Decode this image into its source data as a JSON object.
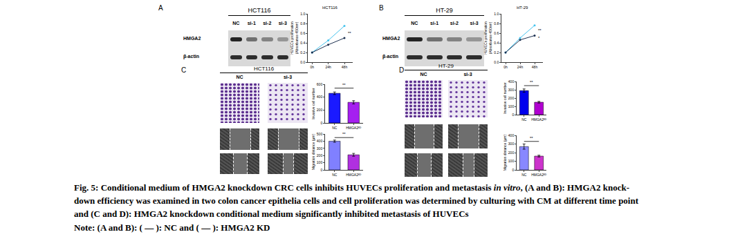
{
  "blots": [
    {
      "panel": "A",
      "title": "HCT116",
      "lanes": [
        "NC",
        "si-1",
        "si-2",
        "si-3"
      ],
      "rows": [
        "HMGA2",
        "β-actin"
      ]
    },
    {
      "panel": "B",
      "title": "HT-29",
      "lanes": [
        "NC",
        "si-1",
        "si-2",
        "si-3"
      ],
      "rows": [
        "HMGA2",
        "β-actin"
      ]
    }
  ],
  "micrographs": [
    {
      "panel": "C",
      "title": "HCT116",
      "lanes": [
        "NC",
        "si-3"
      ]
    },
    {
      "panel": "D",
      "title": "HT-29",
      "lanes": [
        "NC",
        "si-3"
      ]
    }
  ],
  "chart_data": [
    {
      "type": "line",
      "title": "HCT116",
      "y_label": [
        "HUVECs proliferation",
        "(Absorbance 450nm)"
      ],
      "categories": [
        "0h",
        "24h",
        "48h"
      ],
      "series": [
        {
          "name": "NC",
          "color": "#45c3ee",
          "values": [
            0.2,
            0.45,
            0.75
          ]
        },
        {
          "name": "HMGA2 KD",
          "color": "#1c2f4f",
          "values": [
            0.2,
            0.36,
            0.5
          ]
        }
      ],
      "ylim": [
        0,
        1
      ],
      "yticks": [
        {
          "value": 0,
          "label": "0.0"
        },
        0.2,
        0.4,
        0.6,
        0.8,
        {
          "value": 1,
          "label": "1.0"
        }
      ],
      "annotations": [
        {
          "x": "48h",
          "y": 0.6,
          "text": "**"
        }
      ]
    },
    {
      "type": "line",
      "title": "HT-29",
      "y_label": [
        "HUVECs proliferation",
        "(Absorbance 450nm)"
      ],
      "categories": [
        "0h",
        "24h",
        "48h"
      ],
      "series": [
        {
          "name": "NC",
          "color": "#45c3ee",
          "values": [
            0.2,
            0.5,
            0.76
          ]
        },
        {
          "name": "HMGA2 KD",
          "color": "#1c2f4f",
          "values": [
            0.2,
            0.46,
            0.55
          ]
        }
      ],
      "ylim": [
        0,
        1
      ],
      "yticks": [
        {
          "value": 0,
          "label": "0.0"
        },
        0.2,
        0.4,
        0.6,
        0.8,
        {
          "value": 1,
          "label": "1.0"
        }
      ],
      "annotations": [
        {
          "x": "48h",
          "y": 0.66,
          "text": "**"
        },
        {
          "x": "48h",
          "y": 0.5,
          "text": "*"
        }
      ]
    },
    {
      "type": "bar",
      "y_label": "Invasive cell number",
      "categories": [
        "NC",
        "HMGA2ᴷᴰ"
      ],
      "values": [
        460,
        320
      ],
      "errors": [
        20,
        25
      ],
      "colors": [
        "#1a1aff",
        "#a51ff0"
      ],
      "ylim": [
        0,
        600
      ],
      "yticks": [
        0,
        200,
        400,
        600
      ],
      "annotations": [
        {
          "from": "NC",
          "to": "HMGA2ᴷᴰ",
          "y": 540,
          "text": "**"
        }
      ]
    },
    {
      "type": "bar",
      "y_label": "Migration distance (μm)",
      "categories": [
        "NC",
        "HMGA2ᴷᴰ"
      ],
      "values": [
        400,
        210
      ],
      "errors": [
        15,
        20
      ],
      "colors": [
        "#8080ff",
        "#b030e0"
      ],
      "ylim": [
        0,
        500
      ],
      "yticks": [
        0,
        100,
        200,
        300,
        400,
        500
      ],
      "annotations": [
        {
          "from": "NC",
          "to": "HMGA2ᴷᴰ",
          "y": 450,
          "text": "**"
        }
      ]
    },
    {
      "type": "bar",
      "y_label": "Invasive cell number",
      "categories": [
        "NC",
        "HMGA2ᴷᴰ"
      ],
      "values": [
        290,
        150
      ],
      "errors": [
        20,
        10
      ],
      "colors": [
        "#0000ee",
        "#b000d0"
      ],
      "ylim": [
        0,
        400
      ],
      "yticks": [
        0,
        100,
        200,
        300,
        400
      ],
      "annotations": [
        {
          "from": "NC",
          "to": "HMGA2ᴷᴰ",
          "y": 350,
          "text": "**"
        }
      ]
    },
    {
      "type": "bar",
      "y_label": "Migration distance (μm)",
      "categories": [
        "NC",
        "HMGA2ᴷᴰ"
      ],
      "values": [
        270,
        160
      ],
      "errors": [
        30,
        10
      ],
      "colors": [
        "#8888ff",
        "#cc33cc"
      ],
      "ylim": [
        0,
        400
      ],
      "yticks": [
        0,
        100,
        200,
        300,
        400
      ],
      "annotations": [
        {
          "from": "NC",
          "to": "HMGA2ᴷᴰ",
          "y": 330,
          "text": "**"
        }
      ]
    }
  ],
  "caption": [
    [
      {
        "text": "Fig. 5: Conditional medium of HMGA2 knockdown CRC cells inhibits HUVECs proliferation and metastasis "
      },
      {
        "text": "in vitro",
        "italic": true
      },
      {
        "text": ", (A and B): HMGA2 knock-"
      }
    ],
    [
      {
        "text": "down efficiency was examined in two colon cancer epithelia cells and cell proliferation was determined by culturing with CM at different time point"
      }
    ],
    [
      {
        "text": "and (C and D): HMGA2 knockdown conditional medium significantly inhibited metastasis of HUVECs"
      }
    ],
    [
      {
        "text": "Note: (A and B): ( — ): NC and ( — ): HMGA2 KD"
      }
    ]
  ]
}
